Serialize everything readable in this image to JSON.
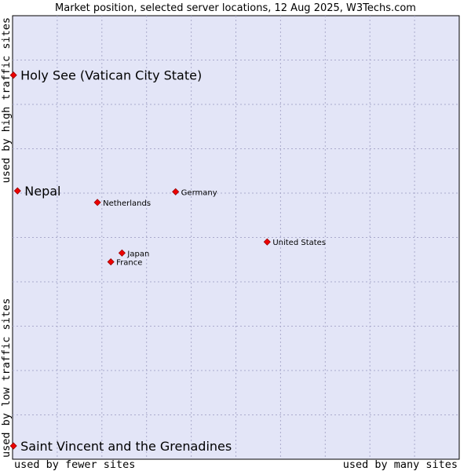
{
  "chart_data": {
    "type": "scatter",
    "title": "Market position, selected server locations, 12 Aug 2025, W3Techs.com",
    "x_axis": {
      "low_label": "used by fewer sites",
      "high_label": "used by many sites",
      "range": [
        0,
        100
      ]
    },
    "y_axis": {
      "low_label": "used by low traffic sites",
      "high_label": "used by high traffic sites",
      "range": [
        0,
        100
      ]
    },
    "grid": true,
    "colors": {
      "plot_background": "#e3e5f7",
      "grid": "#aaaacc",
      "point": "#ee0000",
      "point_stroke": "#990000"
    },
    "points": [
      {
        "label": "Holy See (Vatican City State)",
        "x": 0.2,
        "y": 86.6,
        "emphasis": true
      },
      {
        "label": "Nepal",
        "x": 1.1,
        "y": 60.5,
        "emphasis": true
      },
      {
        "label": "Saint Vincent and the Grenadines",
        "x": 0.2,
        "y": 3.0,
        "emphasis": true
      },
      {
        "label": "Germany",
        "x": 36.5,
        "y": 60.3,
        "emphasis": false
      },
      {
        "label": "Netherlands",
        "x": 19.0,
        "y": 57.9,
        "emphasis": false
      },
      {
        "label": "United States",
        "x": 57.0,
        "y": 49.0,
        "emphasis": false
      },
      {
        "label": "Japan",
        "x": 24.5,
        "y": 46.5,
        "emphasis": false
      },
      {
        "label": "France",
        "x": 22.0,
        "y": 44.5,
        "emphasis": false
      }
    ]
  }
}
